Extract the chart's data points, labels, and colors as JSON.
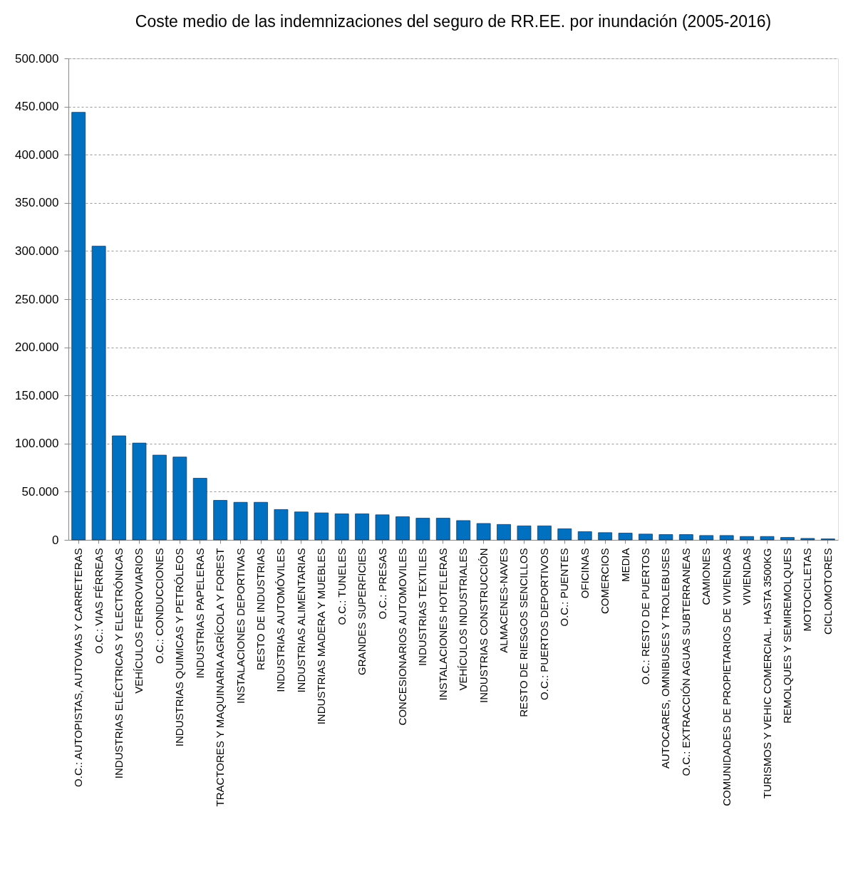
{
  "chart_data": {
    "type": "bar",
    "title": "Coste medio de las indemnizaciones del seguro de RR.EE. por inundación (2005-2016)",
    "categories": [
      "O.C.: AUTOPISTAS, AUTOVIAS Y CARRETERAS",
      "O.C.: VIAS FÉRREAS",
      "INDUSTRIAS ELÉCTRICAS Y ELECTRÓNICAS",
      "VEHÍCULOS FERROVIARIOS",
      "O.C.: CONDUCCIONES",
      "INDUSTRIAS QUIMICAS Y PETRÓLEOS",
      "INDUSTRIAS PAPELERAS",
      "TRACTORES Y MAQUINARIA AGRÍCOLA Y FOREST",
      "INSTALACIONES DEPORTIVAS",
      "RESTO DE INDUSTRIAS",
      "INDUSTRIAS AUTOMÓVILES",
      "INDUSTRIAS ALIMENTARIAS",
      "INDUSTRIAS MADERA Y MUEBLES",
      "O.C.: TUNELES",
      "GRANDES SUPERFICIES",
      "O.C.: PRESAS",
      "CONCESIONARIOS AUTOMOVILES",
      "INDUSTRIAS TEXTILES",
      "INSTALACIONES HOTELERAS",
      "VEHÍCULOS INDUSTRIALES",
      "INDUSTRIAS CONSTRUCCIÓN",
      "ALMACENES-NAVES",
      "RESTO DE RIESGOS SENCILLOS",
      "O.C.: PUERTOS DEPORTIVOS",
      "O.C.: PUENTES",
      "OFICINAS",
      "COMERCIOS",
      "MEDIA",
      "O.C.: RESTO DE PUERTOS",
      "AUTOCARES, OMNIBUSES Y TROLEBUSES",
      "O.C.: EXTRACCIÓN AGUAS SUBTERRANEAS",
      "CAMIONES",
      "COMUNIDADES DE PROPIETARIOS DE VIVIENDAS",
      "VIVIENDAS",
      "TURISMOS Y VEHIC COMERCIAL. HASTA 3500KG",
      "REMOLQUES Y SEMIREMOLQUES",
      "MOTOCICLETAS",
      "CICLOMOTORES"
    ],
    "values": [
      444000,
      305000,
      108000,
      100500,
      88000,
      86000,
      64000,
      41000,
      39000,
      39000,
      31500,
      29000,
      28000,
      27000,
      27000,
      26000,
      24000,
      22500,
      22500,
      20000,
      17000,
      16000,
      14500,
      14500,
      11500,
      8500,
      7500,
      7000,
      6000,
      5500,
      5500,
      4500,
      4500,
      3500,
      3500,
      2500,
      1500,
      1000
    ],
    "color": "#0070c0",
    "ylim": [
      0,
      500000
    ],
    "yticks": [
      {
        "value": 0,
        "label": "0"
      },
      {
        "value": 50000,
        "label": "50.000"
      },
      {
        "value": 100000,
        "label": "100.000"
      },
      {
        "value": 150000,
        "label": "150.000"
      },
      {
        "value": 200000,
        "label": "200.000"
      },
      {
        "value": 250000,
        "label": "250.000"
      },
      {
        "value": 300000,
        "label": "300.000"
      },
      {
        "value": 350000,
        "label": "350.000"
      },
      {
        "value": 400000,
        "label": "400.000"
      },
      {
        "value": 450000,
        "label": "450.000"
      },
      {
        "value": 500000,
        "label": "500.000"
      }
    ],
    "grid": "y"
  }
}
